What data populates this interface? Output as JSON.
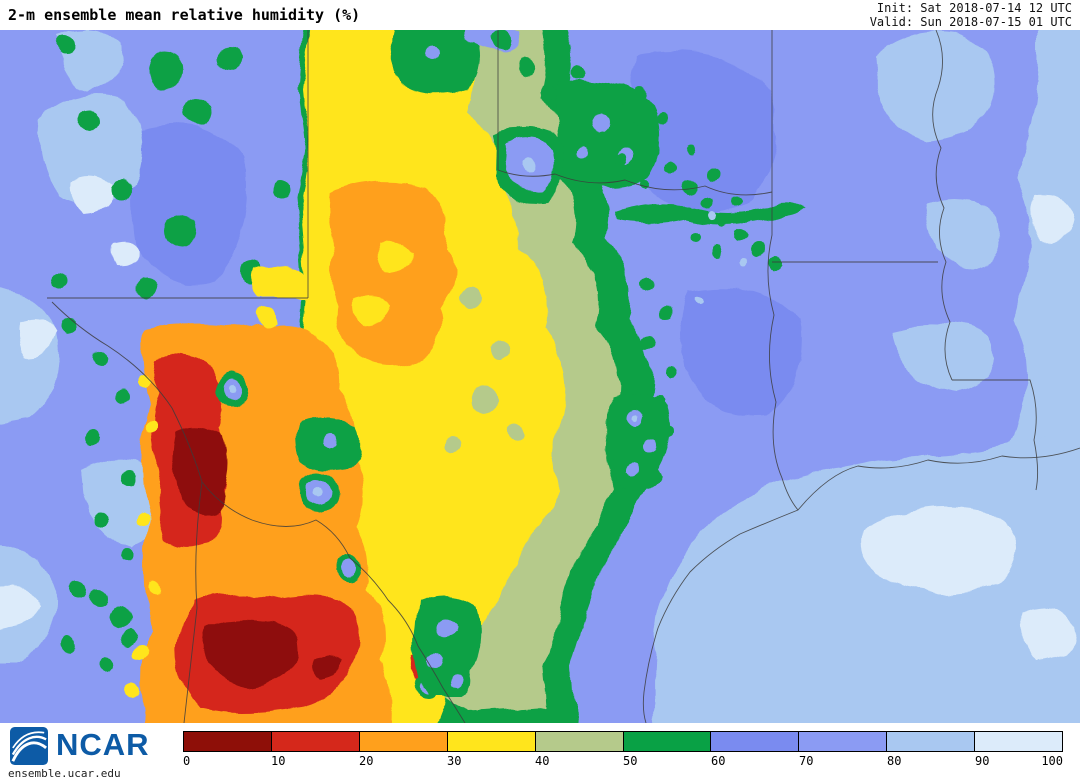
{
  "header": {
    "title": "2-m ensemble mean relative humidity (%)",
    "init_label": "Init: Sat 2018-07-14 12 UTC",
    "valid_label": "Valid: Sun 2018-07-15 01 UTC"
  },
  "footer": {
    "logo_text": "NCAR",
    "site_url": "ensemble.ucar.edu"
  },
  "colorbar": {
    "unit": "%",
    "ticks": [
      0,
      10,
      20,
      30,
      40,
      50,
      60,
      70,
      80,
      90,
      100
    ],
    "segment_colors": [
      "#8e0f08",
      "#d5281b",
      "#ffa01c",
      "#ffe51c",
      "#b5ca8b",
      "#09a145",
      "#7a8bf0",
      "#8b9bf3",
      "#a9c8f1",
      "#dcebfa"
    ]
  },
  "map": {
    "background_level": 70,
    "border_color": "#3c3c3c",
    "description": "Ensemble mean 2-m relative humidity field over Texas, New Mexico, Oklahoma, Arkansas, Louisiana, northern Mexico and the western Gulf of Mexico"
  },
  "chart_data": {
    "type": "heatmap",
    "title": "2-m ensemble mean relative humidity (%)",
    "init": "Sat 2018-07-14 12 UTC",
    "valid": "Sun 2018-07-15 01 UTC",
    "scale_ticks": [
      0,
      10,
      20,
      30,
      40,
      50,
      60,
      70,
      80,
      90,
      100
    ],
    "scale_colors": [
      "#8e0f08",
      "#d5281b",
      "#ffa01c",
      "#ffe51c",
      "#b5ca8b",
      "#09a145",
      "#7a8bf0",
      "#8b9bf3",
      "#a9c8f1",
      "#dcebfa"
    ],
    "legend_position": "bottom",
    "regions": [
      {
        "area": "eastern Texas, Arkansas, Louisiana and Gulf of Mexico",
        "rh_percent": "70-100"
      },
      {
        "area": "central Texas and Oklahoma panhandle area",
        "rh_percent": "30-60"
      },
      {
        "area": "south/west Texas panhandle",
        "rh_percent": "20-30"
      },
      {
        "area": "far west Texas, Rio Grande valley and northern Mexico",
        "rh_percent": "0-30"
      },
      {
        "area": "New Mexico high terrain (map left edge)",
        "rh_percent": "60-100"
      },
      {
        "area": "south-central Texas coastal transition band",
        "rh_percent": "40-60"
      }
    ]
  }
}
